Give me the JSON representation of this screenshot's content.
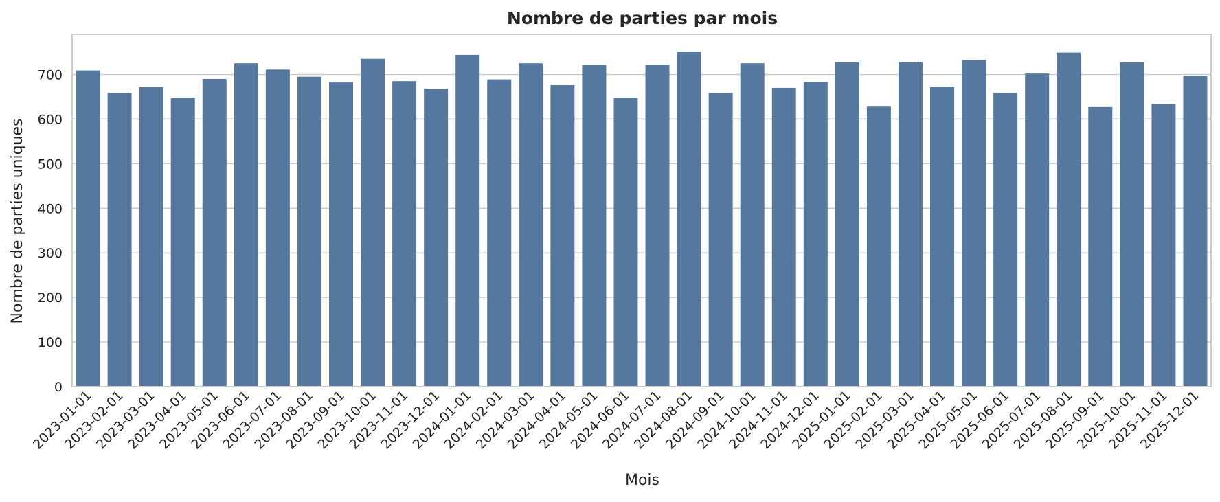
{
  "chart_data": {
    "type": "bar",
    "title": "Nombre de parties par mois",
    "xlabel": "Mois",
    "ylabel": "Nombre de parties uniques",
    "ylim": [
      0,
      790
    ],
    "yticks": [
      0,
      100,
      200,
      300,
      400,
      500,
      600,
      700
    ],
    "grid": "horizontal",
    "bar_color": "#56789E",
    "categories": [
      "2023-01-01",
      "2023-02-01",
      "2023-03-01",
      "2023-04-01",
      "2023-05-01",
      "2023-06-01",
      "2023-07-01",
      "2023-08-01",
      "2023-09-01",
      "2023-10-01",
      "2023-11-01",
      "2023-12-01",
      "2024-01-01",
      "2024-02-01",
      "2024-03-01",
      "2024-04-01",
      "2024-05-01",
      "2024-06-01",
      "2024-07-01",
      "2024-08-01",
      "2024-09-01",
      "2024-10-01",
      "2024-11-01",
      "2024-12-01",
      "2025-01-01",
      "2025-02-01",
      "2025-03-01",
      "2025-04-01",
      "2025-05-01",
      "2025-06-01",
      "2025-07-01",
      "2025-08-01",
      "2025-09-01",
      "2025-10-01",
      "2025-11-01",
      "2025-12-01"
    ],
    "values": [
      709,
      659,
      672,
      648,
      690,
      725,
      711,
      695,
      682,
      735,
      685,
      668,
      744,
      689,
      725,
      676,
      721,
      647,
      721,
      751,
      659,
      725,
      670,
      683,
      727,
      628,
      727,
      673,
      733,
      659,
      702,
      749,
      627,
      727,
      634,
      697
    ]
  }
}
